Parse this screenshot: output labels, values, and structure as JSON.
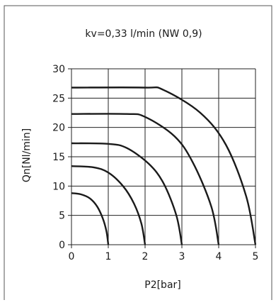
{
  "chart_data": {
    "type": "line",
    "title": "kv=0,33 l/min (NW 0,9)",
    "xlabel": "P2[bar]",
    "ylabel": "Qn[Nl/min]",
    "xlim": [
      0,
      5
    ],
    "ylim": [
      0,
      30
    ],
    "xticks": [
      "0",
      "1",
      "2",
      "3",
      "4",
      "5"
    ],
    "yticks": [
      "0",
      "5",
      "10",
      "15",
      "20",
      "25",
      "30"
    ],
    "grid": true,
    "legend": "none",
    "line_color": "#1a1a1a",
    "series": [
      {
        "p1": 1,
        "x": [
          0,
          0.25,
          0.5,
          0.7,
          0.85,
          0.95,
          1.0
        ],
        "values": [
          8.8,
          8.6,
          7.9,
          6.5,
          4.5,
          2.3,
          0
        ]
      },
      {
        "p1": 2,
        "x": [
          0,
          0.6,
          1.0,
          1.4,
          1.7,
          1.9,
          2.0
        ],
        "values": [
          13.4,
          13.2,
          12.3,
          10.0,
          7.0,
          3.6,
          0
        ]
      },
      {
        "p1": 3,
        "x": [
          0,
          1.0,
          1.5,
          2.1,
          2.5,
          2.85,
          3.0
        ],
        "values": [
          17.3,
          17.2,
          16.5,
          13.8,
          10.5,
          5.0,
          0
        ]
      },
      {
        "p1": 4,
        "x": [
          0,
          1.5,
          2.0,
          2.8,
          3.3,
          3.8,
          4.0
        ],
        "values": [
          22.3,
          22.3,
          21.8,
          18.5,
          14.0,
          6.5,
          0
        ]
      },
      {
        "p1": 5,
        "x": [
          0,
          2.0,
          2.5,
          3.5,
          4.2,
          4.75,
          5.0
        ],
        "values": [
          26.8,
          26.8,
          26.4,
          22.5,
          17.0,
          8.2,
          0
        ]
      }
    ]
  }
}
